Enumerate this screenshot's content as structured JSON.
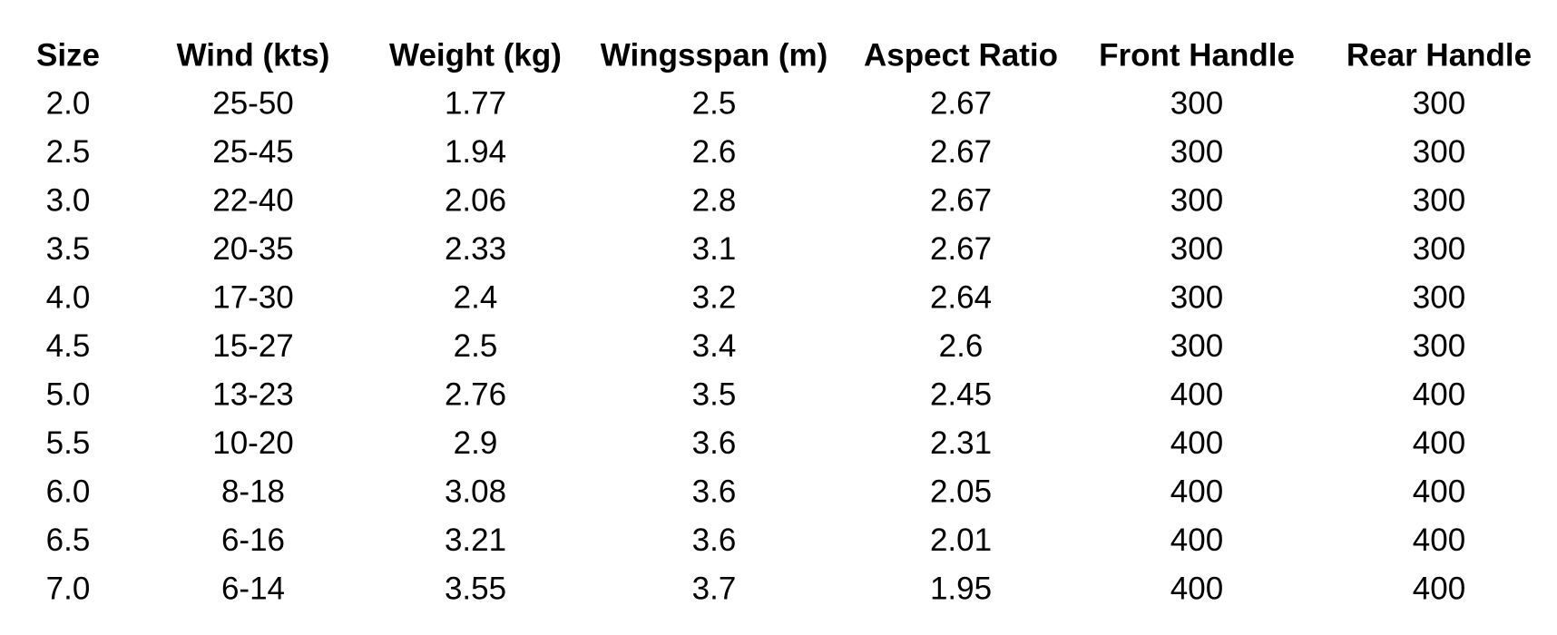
{
  "table": {
    "header": [
      "Size",
      "Wind (kts)",
      "Weight (kg)",
      "Wingsspan (m)",
      "Aspect Ratio",
      "Front Handle",
      "Rear Handle"
    ],
    "rows": [
      [
        "2.0",
        "25-50",
        "1.77",
        "2.5",
        "2.67",
        "300",
        "300"
      ],
      [
        "2.5",
        "25-45",
        "1.94",
        "2.6",
        "2.67",
        "300",
        "300"
      ],
      [
        "3.0",
        "22-40",
        "2.06",
        "2.8",
        "2.67",
        "300",
        "300"
      ],
      [
        "3.5",
        "20-35",
        "2.33",
        "3.1",
        "2.67",
        "300",
        "300"
      ],
      [
        "4.0",
        "17-30",
        "2.4",
        "3.2",
        "2.64",
        "300",
        "300"
      ],
      [
        "4.5",
        "15-27",
        "2.5",
        "3.4",
        "2.6",
        "300",
        "300"
      ],
      [
        "5.0",
        "13-23",
        "2.76",
        "3.5",
        "2.45",
        "400",
        "400"
      ],
      [
        "5.5",
        "10-20",
        "2.9",
        "3.6",
        "2.31",
        "400",
        "400"
      ],
      [
        "6.0",
        "8-18",
        "3.08",
        "3.6",
        "2.05",
        "400",
        "400"
      ],
      [
        "6.5",
        "6-16",
        "3.21",
        "3.6",
        "2.01",
        "400",
        "400"
      ],
      [
        "7.0",
        "6-14",
        "3.55",
        "3.7",
        "1.95",
        "400",
        "400"
      ]
    ]
  }
}
